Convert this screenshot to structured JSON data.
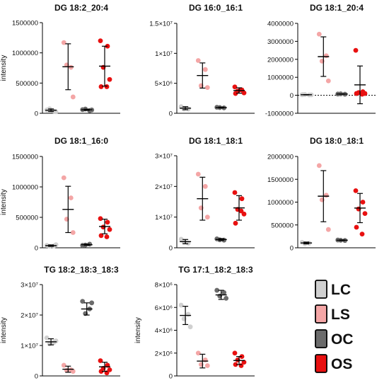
{
  "chart_data": [
    {
      "type": "scatter",
      "title": "DG 18:2_20:4",
      "ylabel": "intensity",
      "ylim": [
        0,
        1500000
      ],
      "yticks": [
        0,
        500000,
        1000000,
        1500000
      ],
      "ytick_labels": [
        "0",
        "500000",
        "1000000",
        "1500000"
      ],
      "groups": [
        {
          "name": "LC",
          "color": "#d0d0d0",
          "points": [
            55000,
            35000,
            75000,
            25000
          ],
          "mean": 50000,
          "sd": 22000
        },
        {
          "name": "LS",
          "color": "#f4a6a6",
          "points": [
            1170000,
            760000,
            800000,
            270000
          ],
          "mean": 770000,
          "sd": 380000
        },
        {
          "name": "OC",
          "color": "#6b6b6b",
          "points": [
            60000,
            45000,
            70000,
            55000
          ],
          "mean": 58000,
          "sd": 10000
        },
        {
          "name": "OS",
          "color": "#e81010",
          "points": [
            1200000,
            1110000,
            760000,
            560000,
            440000,
            440000
          ],
          "mean": 780000,
          "sd": 330000
        }
      ]
    },
    {
      "type": "scatter",
      "title": "DG 16:0_16:1",
      "ylabel": "",
      "ylim": [
        0,
        15000000
      ],
      "yticks": [
        0,
        5000000,
        10000000,
        15000000
      ],
      "ytick_labels": [
        "0",
        "5×10⁶",
        "1×10⁷",
        "1.5×10⁷"
      ],
      "groups": [
        {
          "name": "LC",
          "color": "#d0d0d0",
          "points": [
            1100000,
            700000,
            700000
          ],
          "mean": 850000,
          "sd": 250000
        },
        {
          "name": "LS",
          "color": "#f4a6a6",
          "points": [
            8800000,
            7300000,
            4600000,
            4300000
          ],
          "mean": 6300000,
          "sd": 2100000
        },
        {
          "name": "OC",
          "color": "#6b6b6b",
          "points": [
            1000000,
            900000,
            950000
          ],
          "mean": 950000,
          "sd": 80000
        },
        {
          "name": "OS",
          "color": "#e81010",
          "points": [
            4400000,
            3900000,
            3700000,
            3400000,
            3300000,
            3900000
          ],
          "mean": 3800000,
          "sd": 450000
        }
      ]
    },
    {
      "type": "scatter",
      "title": "DG 18:1_20:4",
      "ylabel": "",
      "ylim": [
        -1000000,
        4000000
      ],
      "yticks": [
        -1000000,
        0,
        1000000,
        2000000,
        3000000,
        4000000
      ],
      "ytick_labels": [
        "-1000000",
        "0",
        "1000000",
        "2000000",
        "3000000",
        "4000000"
      ],
      "zero_line": true,
      "groups": [
        {
          "name": "LC",
          "color": "#d0d0d0",
          "points": [
            30000,
            20000,
            40000,
            25000,
            35000
          ],
          "mean": 30000,
          "sd": 10000
        },
        {
          "name": "LS",
          "color": "#f4a6a6",
          "points": [
            3400000,
            2200000,
            1900000,
            800000
          ],
          "mean": 2150000,
          "sd": 1100000
        },
        {
          "name": "OC",
          "color": "#6b6b6b",
          "points": [
            70000,
            60000,
            80000
          ],
          "mean": 70000,
          "sd": 10000
        },
        {
          "name": "OS",
          "color": "#e81010",
          "points": [
            2500000,
            200000,
            150000,
            100000,
            100000,
            60000
          ],
          "mean": 580000,
          "sd": 1050000
        }
      ]
    },
    {
      "type": "scatter",
      "title": "DG 18:1_16:0",
      "ylabel": "intensity",
      "ylim": [
        0,
        1500000
      ],
      "yticks": [
        0,
        500000,
        1000000,
        1500000
      ],
      "ytick_labels": [
        "0",
        "500000",
        "1000000",
        "1500000"
      ],
      "groups": [
        {
          "name": "LC",
          "color": "#d0d0d0",
          "points": [
            40000,
            30000,
            25000,
            50000
          ],
          "mean": 35000,
          "sd": 12000
        },
        {
          "name": "LS",
          "color": "#f4a6a6",
          "points": [
            1150000,
            820000,
            470000,
            250000
          ],
          "mean": 630000,
          "sd": 380000
        },
        {
          "name": "OC",
          "color": "#6b6b6b",
          "points": [
            40000,
            60000,
            45000
          ],
          "mean": 50000,
          "sd": 10000
        },
        {
          "name": "OS",
          "color": "#e81010",
          "points": [
            480000,
            420000,
            340000,
            300000,
            200000,
            180000
          ],
          "mean": 350000,
          "sd": 120000
        }
      ]
    },
    {
      "type": "scatter",
      "title": "DG 18:1_18:1",
      "ylabel": "",
      "ylim": [
        0,
        30000000
      ],
      "yticks": [
        0,
        10000000,
        20000000,
        30000000
      ],
      "ytick_labels": [
        "0",
        "1×10⁷",
        "2×10⁷",
        "3×10⁷"
      ],
      "groups": [
        {
          "name": "LC",
          "color": "#d0d0d0",
          "points": [
            2800000,
            1500000,
            2000000
          ],
          "mean": 2000000,
          "sd": 700000
        },
        {
          "name": "LS",
          "color": "#f4a6a6",
          "points": [
            24000000,
            20000000,
            13000000,
            10000000
          ],
          "mean": 16000000,
          "sd": 7000000
        },
        {
          "name": "OC",
          "color": "#6b6b6b",
          "points": [
            2900000,
            2500000,
            2600000
          ],
          "mean": 2700000,
          "sd": 300000
        },
        {
          "name": "OS",
          "color": "#e81010",
          "points": [
            18000000,
            16000000,
            12500000,
            11000000,
            8000000,
            12000000
          ],
          "mean": 13000000,
          "sd": 4000000
        }
      ]
    },
    {
      "type": "scatter",
      "title": "DG 18:0_18:1",
      "ylabel": "",
      "ylim": [
        0,
        2000000
      ],
      "yticks": [
        0,
        500000,
        1000000,
        1500000,
        2000000
      ],
      "ytick_labels": [
        "0",
        "500000",
        "1000000",
        "1500000",
        "2000000"
      ],
      "groups": [
        {
          "name": "LC",
          "color": "#d0d0d0",
          "points": [
            120000,
            100000,
            90000
          ],
          "mean": 105000,
          "sd": 20000
        },
        {
          "name": "LS",
          "color": "#f4a6a6",
          "points": [
            1800000,
            1150000,
            1050000,
            400000
          ],
          "mean": 1130000,
          "sd": 560000
        },
        {
          "name": "OC",
          "color": "#6b6b6b",
          "points": [
            170000,
            160000,
            165000
          ],
          "mean": 165000,
          "sd": 8000
        },
        {
          "name": "OS",
          "color": "#e81010",
          "points": [
            1250000,
            1000000,
            850000,
            750000,
            450000,
            300000
          ],
          "mean": 870000,
          "sd": 320000
        }
      ]
    },
    {
      "type": "scatter",
      "title": "TG 18:2_18:3_18:3",
      "ylabel": "intensity",
      "ylim": [
        0,
        30000000
      ],
      "yticks": [
        0,
        10000000,
        20000000,
        30000000
      ],
      "ytick_labels": [
        "0",
        "1×10⁷",
        "2×10⁷",
        "3×10⁷"
      ],
      "groups": [
        {
          "name": "LC",
          "color": "#d0d0d0",
          "points": [
            12500000,
            11000000,
            10500000,
            11500000
          ],
          "mean": 11200000,
          "sd": 1000000
        },
        {
          "name": "LS",
          "color": "#f4a6a6",
          "points": [
            3500000,
            2000000,
            1800000,
            1500000
          ],
          "mean": 2200000,
          "sd": 1000000
        },
        {
          "name": "OC",
          "color": "#6b6b6b",
          "points": [
            24500000,
            22000000,
            20500000,
            24000000
          ],
          "mean": 22000000,
          "sd": 2000000
        },
        {
          "name": "OS",
          "color": "#e81010",
          "points": [
            5000000,
            3500000,
            2500000,
            2000000,
            1500000,
            1000000
          ],
          "mean": 3000000,
          "sd": 1500000
        }
      ]
    },
    {
      "type": "scatter",
      "title": "TG 17:1_18:2_18:3",
      "ylabel": "intensity",
      "ylim": [
        0,
        8000000
      ],
      "yticks": [
        0,
        2000000,
        4000000,
        6000000,
        8000000
      ],
      "ytick_labels": [
        "0",
        "2×10⁶",
        "4×10⁶",
        "6×10⁶",
        "8×10⁶"
      ],
      "groups": [
        {
          "name": "LC",
          "color": "#d0d0d0",
          "points": [
            6200000,
            5400000,
            5000000,
            4300000
          ],
          "mean": 5300000,
          "sd": 800000
        },
        {
          "name": "LS",
          "color": "#f4a6a6",
          "points": [
            2000000,
            1400000,
            1000000,
            900000
          ],
          "mean": 1300000,
          "sd": 600000
        },
        {
          "name": "OC",
          "color": "#6b6b6b",
          "points": [
            7500000,
            7300000,
            7000000,
            6800000
          ],
          "mean": 7100000,
          "sd": 400000
        },
        {
          "name": "OS",
          "color": "#e81010",
          "points": [
            2000000,
            1700000,
            1400000,
            1200000,
            1000000,
            900000
          ],
          "mean": 1350000,
          "sd": 350000
        }
      ]
    }
  ],
  "legend": {
    "placement": "bottom-right",
    "items": [
      {
        "label": "LC",
        "color": "#d0d0d0"
      },
      {
        "label": "LS",
        "color": "#f4a6a6"
      },
      {
        "label": "OC",
        "color": "#6b6b6b"
      },
      {
        "label": "OS",
        "color": "#e81010"
      }
    ]
  }
}
